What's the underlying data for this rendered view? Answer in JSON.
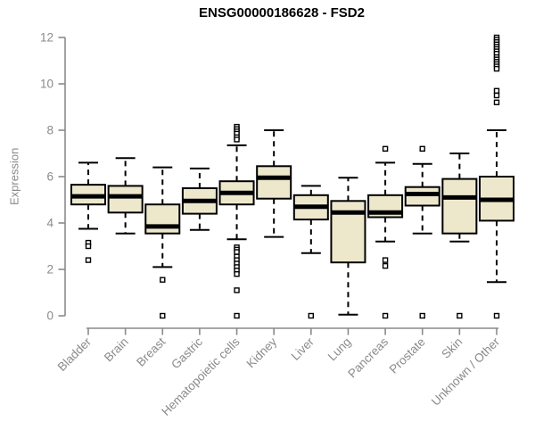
{
  "chart_data": {
    "type": "boxplot",
    "title": "ENSG00000186628 - FSD2",
    "xlabel": "",
    "ylabel": "Expression",
    "ylim": [
      0,
      12
    ],
    "yticks": [
      0,
      2,
      4,
      6,
      8,
      10,
      12
    ],
    "grid": false,
    "legend": "none",
    "categories": [
      "Bladder",
      "Brain",
      "Breast",
      "Gastric",
      "Hematopoietic cells",
      "Kidney",
      "Liver",
      "Lung",
      "Pancreas",
      "Prostate",
      "Skin",
      "Unknown / Other"
    ],
    "boxes": [
      {
        "category": "Bladder",
        "whisker_low": 3.75,
        "q1": 4.8,
        "median": 5.15,
        "q3": 5.65,
        "whisker_high": 6.6,
        "outliers": [
          3.15,
          3.0,
          2.4
        ]
      },
      {
        "category": "Brain",
        "whisker_low": 3.55,
        "q1": 4.45,
        "median": 5.15,
        "q3": 5.6,
        "whisker_high": 6.8,
        "outliers": []
      },
      {
        "category": "Breast",
        "whisker_low": 2.1,
        "q1": 3.55,
        "median": 3.85,
        "q3": 4.8,
        "whisker_high": 6.4,
        "outliers": [
          1.55,
          0
        ]
      },
      {
        "category": "Gastric",
        "whisker_low": 3.7,
        "q1": 4.4,
        "median": 4.95,
        "q3": 5.5,
        "whisker_high": 6.35,
        "outliers": []
      },
      {
        "category": "Hematopoietic cells",
        "whisker_low": 3.3,
        "q1": 4.8,
        "median": 5.3,
        "q3": 5.8,
        "whisker_high": 7.35,
        "outliers": [
          8.15,
          8.05,
          7.95,
          7.85,
          7.7,
          7.6,
          2.95,
          2.85,
          2.75,
          2.55,
          2.4,
          2.25,
          2.1,
          1.95,
          1.8,
          1.1,
          0
        ]
      },
      {
        "category": "Kidney",
        "whisker_low": 3.4,
        "q1": 5.05,
        "median": 5.95,
        "q3": 6.45,
        "whisker_high": 8.0,
        "outliers": []
      },
      {
        "category": "Liver",
        "whisker_low": 2.7,
        "q1": 4.15,
        "median": 4.7,
        "q3": 5.2,
        "whisker_high": 5.6,
        "outliers": [
          0
        ]
      },
      {
        "category": "Lung",
        "whisker_low": 0.05,
        "q1": 2.3,
        "median": 4.45,
        "q3": 4.95,
        "whisker_high": 5.95,
        "outliers": []
      },
      {
        "category": "Pancreas",
        "whisker_low": 3.2,
        "q1": 4.25,
        "median": 4.45,
        "q3": 5.2,
        "whisker_high": 6.6,
        "outliers": [
          7.2,
          2.4,
          2.15,
          0
        ]
      },
      {
        "category": "Prostate",
        "whisker_low": 3.55,
        "q1": 4.75,
        "median": 5.25,
        "q3": 5.55,
        "whisker_high": 6.55,
        "outliers": [
          7.2,
          0
        ]
      },
      {
        "category": "Skin",
        "whisker_low": 3.2,
        "q1": 3.55,
        "median": 5.1,
        "q3": 5.9,
        "whisker_high": 7.0,
        "outliers": [
          0
        ]
      },
      {
        "category": "Unknown / Other",
        "whisker_low": 1.45,
        "q1": 4.1,
        "median": 5.0,
        "q3": 6.0,
        "whisker_high": 8.0,
        "outliers": [
          12.0,
          11.9,
          11.8,
          11.7,
          11.6,
          11.5,
          11.4,
          11.3,
          11.15,
          11.05,
          10.95,
          10.85,
          10.75,
          10.65,
          9.7,
          9.5,
          9.2,
          0
        ]
      }
    ]
  },
  "colors": {
    "background": "#FFFFFF",
    "box_fill": "#EDE8CC",
    "box_stroke": "#000000",
    "median": "#000000",
    "outlier_fill": "#FFFFFF",
    "axis": "#8A8A8A",
    "tick_label": "#8A8A8A",
    "title": "#000000"
  }
}
